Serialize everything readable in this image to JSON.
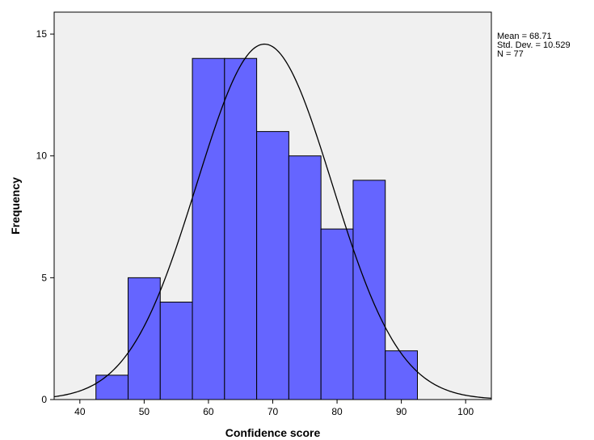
{
  "chart_data": {
    "type": "bar",
    "subtype": "histogram",
    "xlabel": "Confidence score",
    "ylabel": "Frequency",
    "xlim": [
      36,
      104
    ],
    "ylim": [
      0,
      15.9
    ],
    "x_ticks": [
      40,
      50,
      60,
      70,
      80,
      90,
      100
    ],
    "y_ticks": [
      0,
      5,
      10,
      15
    ],
    "bar_color": "#6565FF",
    "plot_background": "#F0F0F0",
    "bins": [
      {
        "start": 42.5,
        "end": 47.5,
        "count": 1
      },
      {
        "start": 47.5,
        "end": 52.5,
        "count": 5
      },
      {
        "start": 52.5,
        "end": 57.5,
        "count": 4
      },
      {
        "start": 57.5,
        "end": 62.5,
        "count": 14
      },
      {
        "start": 62.5,
        "end": 67.5,
        "count": 14
      },
      {
        "start": 67.5,
        "end": 72.5,
        "count": 11
      },
      {
        "start": 72.5,
        "end": 77.5,
        "count": 10
      },
      {
        "start": 77.5,
        "end": 82.5,
        "count": 7
      },
      {
        "start": 82.5,
        "end": 87.5,
        "count": 9
      },
      {
        "start": 87.5,
        "end": 92.5,
        "count": 2
      }
    ],
    "normal_curve": {
      "mean": 68.71,
      "std": 10.529,
      "n": 77,
      "bin_width": 5
    },
    "stats_labels": [
      "Mean = 68.71",
      "Std. Dev. = 10.529",
      "N = 77"
    ]
  }
}
